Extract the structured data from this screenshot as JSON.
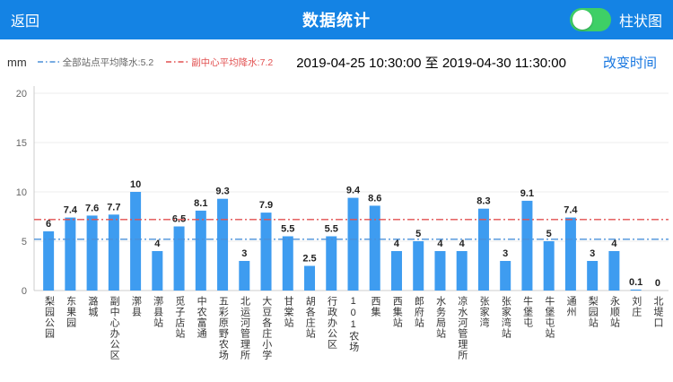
{
  "topbar": {
    "back_label": "返回",
    "title": "数据统计",
    "toggle_on": true,
    "chart_type_label": "柱状图",
    "bar_color": "#1483e4",
    "toggle_color": "#3ecf66"
  },
  "header": {
    "unit": "mm",
    "legends": [
      {
        "label": "全部站点平均降水:5.2",
        "line_color": "#4a90d9",
        "text_color": "#666666",
        "value": 5.2
      },
      {
        "label": "副中心平均降水:7.2",
        "line_color": "#e25050",
        "text_color": "#e25050",
        "value": 7.2
      }
    ],
    "date_range": "2019-04-25 10:30:00 至 2019-04-30 11:30:00",
    "change_time_label": "改变时间"
  },
  "chart_data": {
    "type": "bar",
    "title": "数据统计",
    "xlabel": "",
    "ylabel": "mm",
    "ylim": [
      0,
      20
    ],
    "yticks": [
      0,
      5,
      10,
      15,
      20
    ],
    "grid": true,
    "bar_color": "#3e9cf0",
    "categories": [
      "梨园公园",
      "东果园",
      "潞城",
      "副中心办公区",
      "漷县",
      "漷县站",
      "觅子店站",
      "中农富通",
      "五彩原野农场",
      "北运河管理所",
      "大豆各庄小学",
      "甘棠站",
      "胡各庄站",
      "行政办公区",
      "101农场",
      "西集",
      "西集站",
      "郎府站",
      "水务局站",
      "凉水河管理所",
      "张家湾",
      "张家湾站",
      "牛堡屯",
      "牛堡屯站",
      "通州",
      "梨园站",
      "永顺站",
      "刘庄",
      "北堤口"
    ],
    "values": [
      6,
      7.4,
      7.6,
      7.7,
      10,
      4,
      6.5,
      8.1,
      9.3,
      3,
      7.9,
      5.5,
      2.5,
      5.5,
      9.4,
      8.6,
      4,
      5,
      4,
      4,
      8.3,
      3,
      9.1,
      5,
      7.4,
      3,
      4,
      0.1,
      0
    ],
    "reference_lines": [
      {
        "label": "全部站点平均降水",
        "value": 5.2,
        "color": "#4a90d9"
      },
      {
        "label": "副中心平均降水",
        "value": 7.2,
        "color": "#e25050"
      }
    ]
  }
}
